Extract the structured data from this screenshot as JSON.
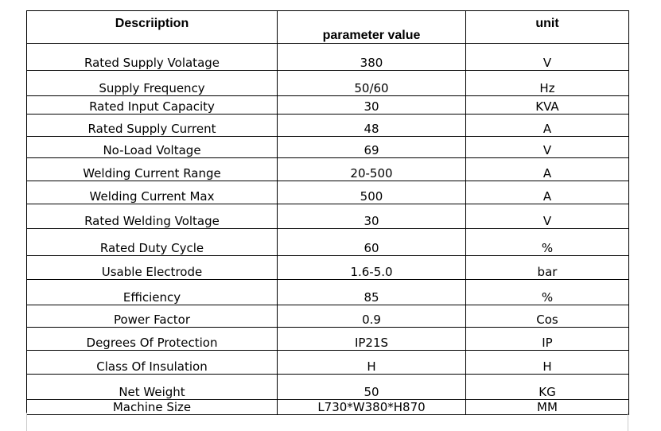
{
  "table": {
    "headers": {
      "description": "Descriiption",
      "value": "parameter value",
      "unit": "unit"
    },
    "rows": [
      {
        "description": "Rated Supply Volatage",
        "value": "380",
        "unit": "V"
      },
      {
        "description": "Supply Frequency",
        "value": "50/60",
        "unit": "Hz"
      },
      {
        "description": "Rated Input Capacity",
        "value": "30",
        "unit": "KVA"
      },
      {
        "description": "Rated Supply Current",
        "value": "48",
        "unit": "A"
      },
      {
        "description": "No-Load Voltage",
        "value": "69",
        "unit": "V"
      },
      {
        "description": "Welding Current Range",
        "value": "20-500",
        "unit": "A"
      },
      {
        "description": "Welding Current Max",
        "value": "500",
        "unit": "A"
      },
      {
        "description": "Rated Welding Voltage",
        "value": "30",
        "unit": "V"
      },
      {
        "description": "Rated Duty Cycle",
        "value": "60",
        "unit": "%"
      },
      {
        "description": "Usable Electrode",
        "value": "1.6-5.0",
        "unit": "bar"
      },
      {
        "description": "Efficiency",
        "value": "85",
        "unit": "%"
      },
      {
        "description": "Power Factor",
        "value": "0.9",
        "unit": "Cos"
      },
      {
        "description": "Degrees Of Protection",
        "value": "IP21S",
        "unit": "IP"
      },
      {
        "description": "Class Of Insulation",
        "value": "H",
        "unit": "H"
      },
      {
        "description": "Net Weight",
        "value": "50",
        "unit": "KG"
      },
      {
        "description": "Machine Size",
        "value": "L730*W380*H870",
        "unit": "MM"
      }
    ]
  }
}
